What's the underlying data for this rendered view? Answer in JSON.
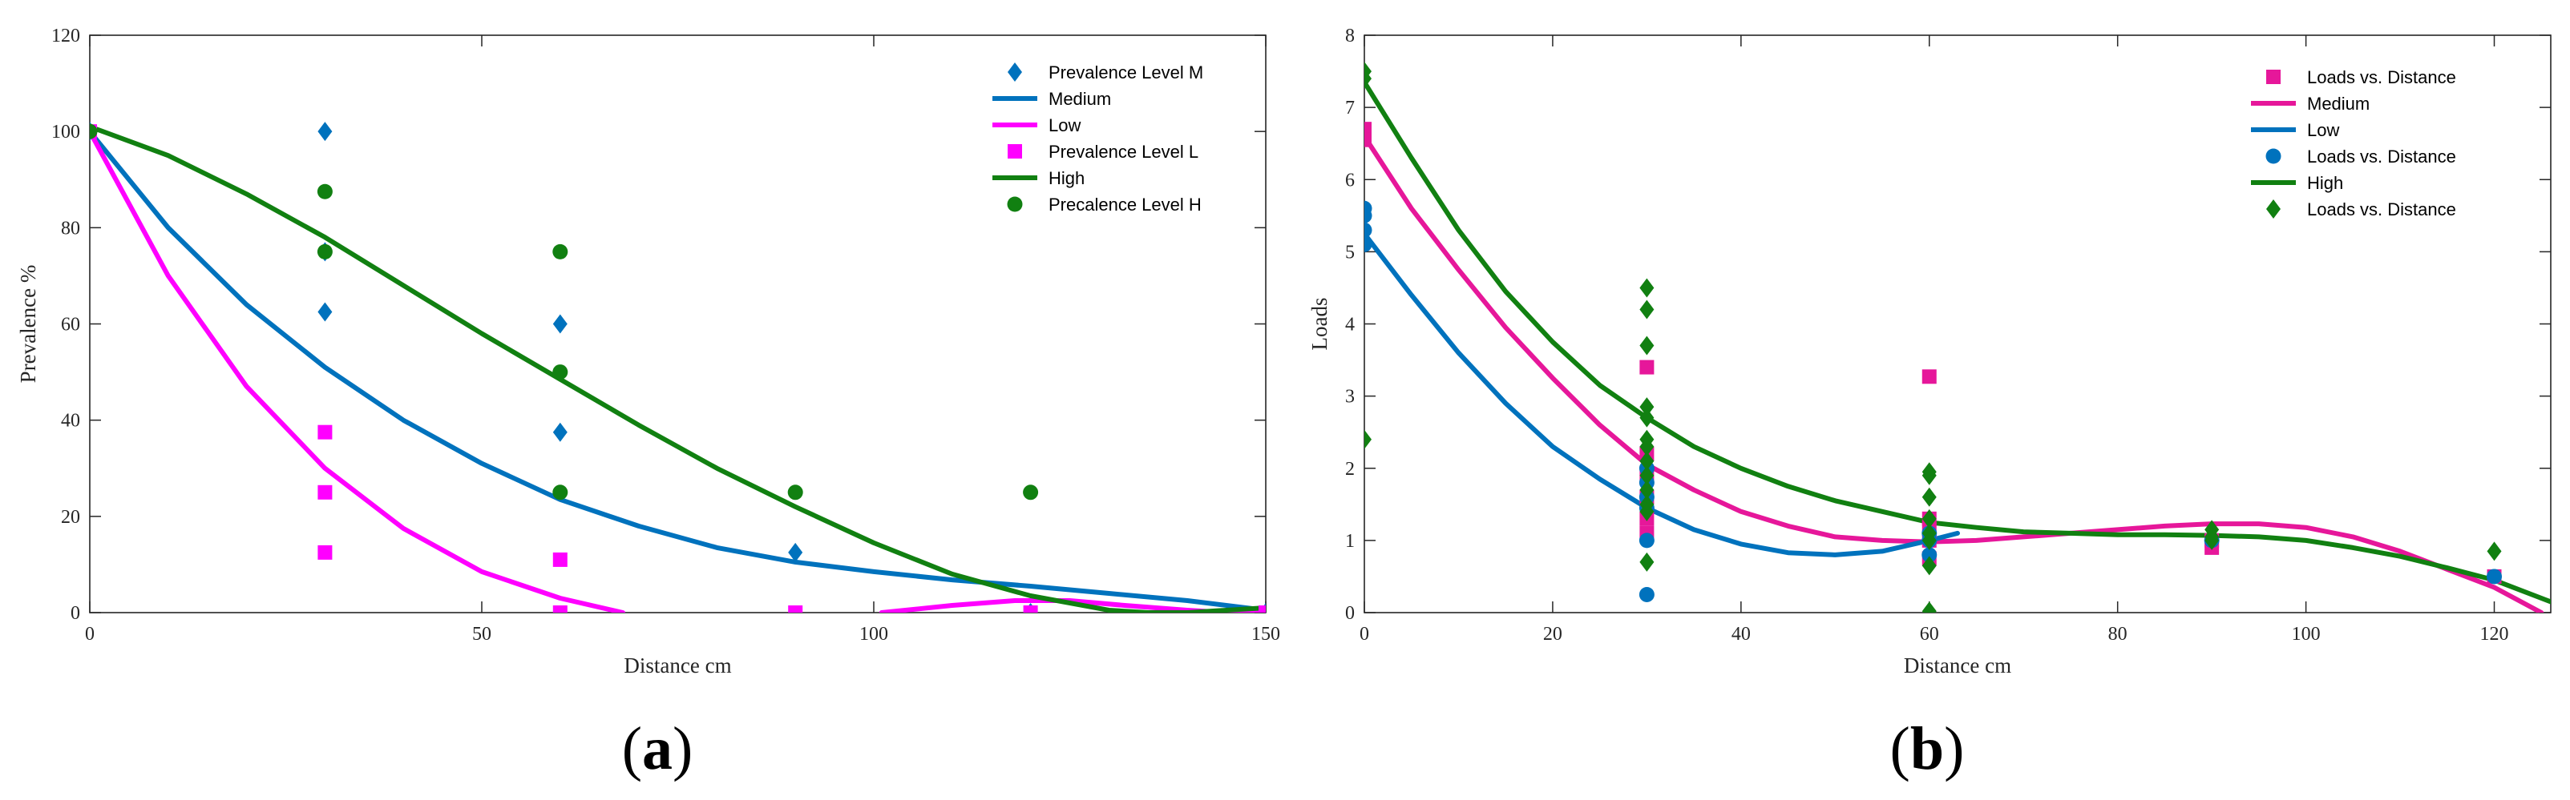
{
  "colors": {
    "blue": "#0072bd",
    "magenta": "#ff00ff",
    "magenta_dark": "#e6179a",
    "green": "#118011",
    "axis": "#262626"
  },
  "chart_data": [
    {
      "id": "a",
      "type": "scatter",
      "panel_label": "a",
      "xlabel": "Distance cm",
      "ylabel": "Prevalence %",
      "xlim": [
        0,
        150
      ],
      "ylim": [
        0,
        120
      ],
      "xticks": [
        0,
        50,
        100,
        150
      ],
      "yticks": [
        0,
        20,
        40,
        60,
        80,
        100,
        120
      ],
      "grid": false,
      "legend_position": "top-right",
      "legend": [
        {
          "label": "Prevalence Level M",
          "kind": "marker",
          "marker": "diamond",
          "color": "#0072bd"
        },
        {
          "label": "Medium",
          "kind": "line",
          "color": "#0072bd"
        },
        {
          "label": "Low",
          "kind": "line",
          "color": "#ff00ff"
        },
        {
          "label": "Prevalence Level L",
          "kind": "marker",
          "marker": "square",
          "color": "#ff00ff"
        },
        {
          "label": "High",
          "kind": "line",
          "color": "#118011"
        },
        {
          "label": "Precalence Level H",
          "kind": "marker",
          "marker": "circle",
          "color": "#118011"
        }
      ],
      "series": [
        {
          "name": "Prevalence Level M",
          "kind": "scatter",
          "marker": "diamond",
          "color": "#0072bd",
          "x": [
            0,
            30,
            30,
            30,
            60,
            60,
            90,
            120,
            150
          ],
          "y": [
            100,
            100,
            75,
            62.5,
            60,
            37.5,
            12.5,
            0,
            0
          ]
        },
        {
          "name": "Prevalence Level L",
          "kind": "scatter",
          "marker": "square",
          "color": "#ff00ff",
          "x": [
            0,
            30,
            30,
            30,
            60,
            60,
            90,
            120,
            150
          ],
          "y": [
            100,
            37.5,
            25,
            12.5,
            11,
            0,
            0,
            0,
            0
          ]
        },
        {
          "name": "Precalence Level H",
          "kind": "scatter",
          "marker": "circle",
          "color": "#118011",
          "x": [
            0,
            30,
            30,
            60,
            60,
            60,
            90,
            120
          ],
          "y": [
            100,
            87.5,
            75,
            75,
            50,
            25,
            25,
            25
          ]
        },
        {
          "name": "Medium",
          "kind": "line",
          "color": "#0072bd",
          "x": [
            0,
            10,
            20,
            30,
            40,
            50,
            60,
            70,
            80,
            90,
            100,
            110,
            120,
            130,
            140,
            150
          ],
          "y": [
            100,
            80,
            64,
            51,
            40,
            31,
            23.5,
            18,
            13.5,
            10.5,
            8.5,
            6.8,
            5.5,
            4,
            2.5,
            0.5
          ]
        },
        {
          "name": "Low",
          "kind": "line",
          "color": "#ff00ff",
          "x": [
            0,
            10,
            20,
            30,
            40,
            50,
            60,
            68
          ],
          "y": [
            100,
            70,
            47,
            30,
            17.5,
            8.5,
            3,
            0
          ]
        },
        {
          "name": "Low (tail)",
          "kind": "line",
          "color": "#ff00ff",
          "x": [
            101,
            110,
            118,
            125,
            132,
            140,
            145,
            150
          ],
          "y": [
            0,
            1.5,
            2.5,
            2.5,
            1.5,
            0.5,
            0,
            0
          ]
        },
        {
          "name": "High",
          "kind": "line",
          "color": "#118011",
          "x": [
            0,
            10,
            20,
            30,
            40,
            50,
            60,
            70,
            80,
            90,
            100,
            110,
            120,
            130,
            135,
            140,
            145,
            150
          ],
          "y": [
            101,
            95,
            87,
            78,
            68,
            58,
            48.5,
            39,
            30,
            22,
            14.5,
            8,
            3.5,
            0.5,
            0,
            0,
            0.5,
            1
          ]
        }
      ]
    },
    {
      "id": "b",
      "type": "scatter",
      "panel_label": "b",
      "xlabel": "Distance cm",
      "ylabel": "Loads",
      "xlim": [
        0,
        126
      ],
      "ylim": [
        0,
        8
      ],
      "xticks": [
        0,
        20,
        40,
        60,
        80,
        100,
        120
      ],
      "yticks": [
        0,
        1,
        2,
        3,
        4,
        5,
        6,
        7,
        8
      ],
      "grid": false,
      "legend_position": "top-right",
      "legend": [
        {
          "label": "Loads vs. Distance",
          "kind": "marker",
          "marker": "square",
          "color": "#e6179a"
        },
        {
          "label": "Medium",
          "kind": "line",
          "color": "#e6179a"
        },
        {
          "label": "Low",
          "kind": "line",
          "color": "#0072bd"
        },
        {
          "label": "Loads vs. Distance",
          "kind": "marker",
          "marker": "circle",
          "color": "#0072bd"
        },
        {
          "label": "High",
          "kind": "line",
          "color": "#118011"
        },
        {
          "label": "Loads vs. Distance",
          "kind": "marker",
          "marker": "diamond",
          "color": "#118011"
        }
      ],
      "series": [
        {
          "name": "Loads vs. Distance (Medium)",
          "kind": "scatter",
          "marker": "square",
          "color": "#e6179a",
          "x": [
            0,
            0,
            30,
            30,
            30,
            30,
            30,
            30,
            60,
            60,
            60,
            60,
            60,
            90,
            90,
            120
          ],
          "y": [
            6.7,
            6.55,
            3.4,
            2.2,
            1.9,
            1.6,
            1.3,
            1.1,
            3.27,
            1.3,
            1.15,
            1.0,
            0.75,
            1.0,
            0.9,
            0.5
          ]
        },
        {
          "name": "Loads vs. Distance (Low)",
          "kind": "scatter",
          "marker": "circle",
          "color": "#0072bd",
          "x": [
            0,
            0,
            0,
            0,
            30,
            30,
            30,
            30,
            30,
            30,
            60,
            60,
            60,
            90,
            120
          ],
          "y": [
            5.6,
            5.5,
            5.3,
            5.1,
            2.0,
            1.8,
            1.6,
            1.45,
            1.0,
            0.25,
            1.1,
            1.0,
            0.8,
            1.0,
            0.5
          ]
        },
        {
          "name": "Loads vs. Distance (High)",
          "kind": "scatter",
          "marker": "diamond",
          "color": "#118011",
          "x": [
            0,
            0,
            0,
            30,
            30,
            30,
            30,
            30,
            30,
            30,
            30,
            30,
            30,
            30,
            30,
            30,
            60,
            60,
            60,
            60,
            60,
            60,
            60,
            60,
            90,
            90,
            90,
            120
          ],
          "y": [
            7.5,
            7.4,
            2.4,
            4.5,
            4.2,
            3.7,
            2.85,
            2.7,
            2.4,
            2.3,
            2.1,
            1.9,
            1.7,
            1.5,
            1.4,
            0.7,
            1.95,
            1.9,
            1.6,
            1.3,
            1.1,
            1.0,
            0.65,
            0.02,
            1.15,
            1.05,
            1.0,
            0.85
          ]
        },
        {
          "name": "Medium",
          "kind": "line",
          "color": "#e6179a",
          "x": [
            0,
            5,
            10,
            15,
            20,
            25,
            30,
            35,
            40,
            45,
            50,
            55,
            60,
            65,
            70,
            75,
            80,
            85,
            90,
            95,
            100,
            105,
            110,
            115,
            120,
            125
          ],
          "y": [
            6.6,
            5.6,
            4.75,
            3.95,
            3.25,
            2.6,
            2.05,
            1.7,
            1.4,
            1.2,
            1.05,
            1.0,
            0.98,
            1.0,
            1.05,
            1.1,
            1.15,
            1.2,
            1.23,
            1.23,
            1.18,
            1.05,
            0.85,
            0.6,
            0.35,
            0
          ]
        },
        {
          "name": "Low",
          "kind": "line",
          "color": "#0072bd",
          "x": [
            0,
            5,
            10,
            15,
            20,
            25,
            30,
            35,
            40,
            45,
            50,
            55,
            60,
            63
          ],
          "y": [
            5.25,
            4.4,
            3.6,
            2.9,
            2.3,
            1.85,
            1.45,
            1.15,
            0.95,
            0.83,
            0.8,
            0.85,
            1.0,
            1.1
          ]
        },
        {
          "name": "High",
          "kind": "line",
          "color": "#118011",
          "x": [
            0,
            5,
            10,
            15,
            20,
            25,
            30,
            35,
            40,
            45,
            50,
            55,
            60,
            65,
            70,
            75,
            80,
            85,
            90,
            95,
            100,
            105,
            110,
            115,
            120,
            126
          ],
          "y": [
            7.35,
            6.3,
            5.3,
            4.45,
            3.75,
            3.15,
            2.7,
            2.3,
            2.0,
            1.75,
            1.55,
            1.4,
            1.25,
            1.18,
            1.12,
            1.1,
            1.08,
            1.08,
            1.07,
            1.05,
            1.0,
            0.9,
            0.78,
            0.62,
            0.45,
            0.15
          ]
        }
      ]
    }
  ]
}
